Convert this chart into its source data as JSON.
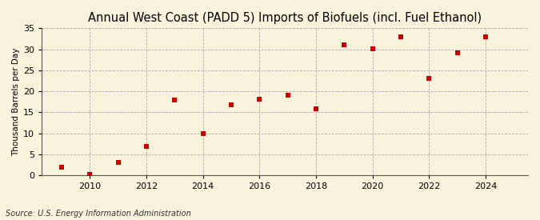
{
  "title": "Annual West Coast (PADD 5) Imports of Biofuels (incl. Fuel Ethanol)",
  "ylabel": "Thousand Barrels per Day",
  "source": "Source: U.S. Energy Information Administration",
  "years": [
    2009,
    2010,
    2011,
    2012,
    2013,
    2014,
    2015,
    2016,
    2017,
    2018,
    2019,
    2020,
    2021,
    2022,
    2023,
    2024
  ],
  "values": [
    1.9,
    0.1,
    3.1,
    6.9,
    18.0,
    10.0,
    16.8,
    18.1,
    19.1,
    15.8,
    31.1,
    30.1,
    33.0,
    23.1,
    29.2,
    33.0
  ],
  "marker_color": "#cc0000",
  "marker": "s",
  "marker_size": 4,
  "bg_color": "#faf3dc",
  "plot_bg_color": "#faf3dc",
  "grid_color": "#aaaaaa",
  "xlim": [
    2008.3,
    2025.5
  ],
  "ylim": [
    0,
    35
  ],
  "yticks": [
    0,
    5,
    10,
    15,
    20,
    25,
    30,
    35
  ],
  "xticks": [
    2010,
    2012,
    2014,
    2016,
    2018,
    2020,
    2022,
    2024
  ],
  "title_fontsize": 10.5,
  "label_fontsize": 7.5,
  "tick_fontsize": 8,
  "source_fontsize": 7
}
